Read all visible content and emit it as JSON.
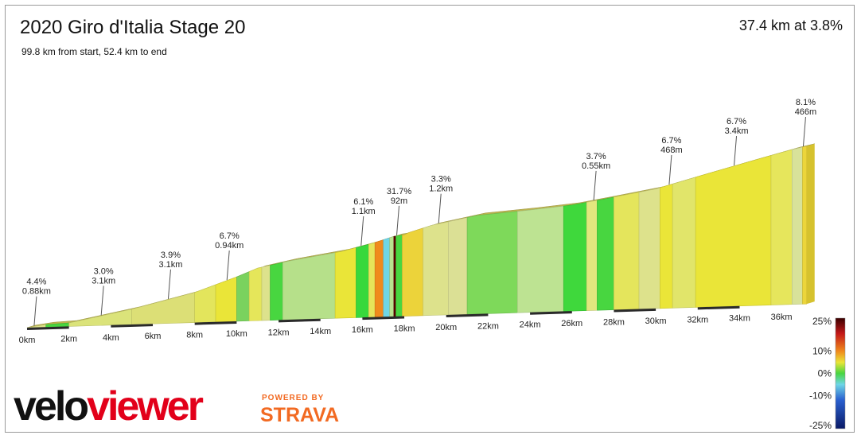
{
  "header": {
    "title": "2020 Giro d'Italia Stage 20",
    "subtitle": "99.8 km from start, 52.4 km to end",
    "summary": "37.4 km at 3.8%"
  },
  "branding": {
    "logo_part1": "velo",
    "logo_part2": "viewer",
    "powered_by": "POWERED BY",
    "strava": "STRAVA"
  },
  "chart_data": {
    "type": "area",
    "x_unit": "km",
    "x_ticks": [
      "0km",
      "2km",
      "4km",
      "6km",
      "8km",
      "10km",
      "12km",
      "14km",
      "16km",
      "18km",
      "20km",
      "22km",
      "24km",
      "26km",
      "28km",
      "30km",
      "32km",
      "34km",
      "36km"
    ],
    "x_tick_values": [
      0,
      2,
      4,
      6,
      8,
      10,
      12,
      14,
      16,
      18,
      20,
      22,
      24,
      26,
      28,
      30,
      32,
      34,
      36
    ],
    "xlim": [
      0,
      37.4
    ],
    "profile": [
      {
        "x": 0.0,
        "y": 0
      },
      {
        "x": 0.9,
        "y": 10
      },
      {
        "x": 2.0,
        "y": 14
      },
      {
        "x": 5.0,
        "y": 62
      },
      {
        "x": 8.0,
        "y": 122
      },
      {
        "x": 10.0,
        "y": 180
      },
      {
        "x": 11.0,
        "y": 213
      },
      {
        "x": 12.5,
        "y": 238
      },
      {
        "x": 15.0,
        "y": 270
      },
      {
        "x": 16.5,
        "y": 300
      },
      {
        "x": 17.5,
        "y": 325
      },
      {
        "x": 18.0,
        "y": 330
      },
      {
        "x": 18.2,
        "y": 338
      },
      {
        "x": 19.3,
        "y": 365
      },
      {
        "x": 21.5,
        "y": 400
      },
      {
        "x": 24.0,
        "y": 415
      },
      {
        "x": 26.0,
        "y": 430
      },
      {
        "x": 27.5,
        "y": 450
      },
      {
        "x": 30.0,
        "y": 485
      },
      {
        "x": 32.0,
        "y": 530
      },
      {
        "x": 34.5,
        "y": 585
      },
      {
        "x": 36.5,
        "y": 628
      },
      {
        "x": 37.2,
        "y": 640
      }
    ],
    "segments": [
      {
        "x0": 0.0,
        "x1": 0.9,
        "gradient": 4.4,
        "color": "#dfe38a"
      },
      {
        "x0": 0.9,
        "x1": 2.0,
        "gradient": 0.5,
        "color": "#48d640"
      },
      {
        "x0": 2.0,
        "x1": 5.0,
        "gradient": 3.0,
        "color": "#dbe37a"
      },
      {
        "x0": 5.0,
        "x1": 8.0,
        "gradient": 3.9,
        "color": "#dcdf76"
      },
      {
        "x0": 8.0,
        "x1": 9.0,
        "gradient": 5.5,
        "color": "#e3e55c"
      },
      {
        "x0": 9.0,
        "x1": 10.0,
        "gradient": 6.7,
        "color": "#eae538"
      },
      {
        "x0": 10.0,
        "x1": 10.6,
        "gradient": 1.0,
        "color": "#7ad25e"
      },
      {
        "x0": 10.6,
        "x1": 11.2,
        "gradient": 5.0,
        "color": "#e5e65a"
      },
      {
        "x0": 11.2,
        "x1": 11.6,
        "gradient": 3.5,
        "color": "#dde28c"
      },
      {
        "x0": 11.6,
        "x1": 12.2,
        "gradient": 0.5,
        "color": "#48d640"
      },
      {
        "x0": 12.2,
        "x1": 14.7,
        "gradient": 2.0,
        "color": "#b6e08a"
      },
      {
        "x0": 14.7,
        "x1": 15.7,
        "gradient": 6.1,
        "color": "#eae538"
      },
      {
        "x0": 15.7,
        "x1": 16.3,
        "gradient": 0.3,
        "color": "#38d83c"
      },
      {
        "x0": 16.3,
        "x1": 16.6,
        "gradient": 5.0,
        "color": "#e6e45a"
      },
      {
        "x0": 16.6,
        "x1": 17.0,
        "gradient": 12.0,
        "color": "#f08a1c"
      },
      {
        "x0": 17.0,
        "x1": 17.3,
        "gradient": -4.0,
        "color": "#6fd6e6"
      },
      {
        "x0": 17.3,
        "x1": 17.5,
        "gradient": 2.0,
        "color": "#b9e28e"
      },
      {
        "x0": 17.5,
        "x1": 17.6,
        "gradient": 31.7,
        "color": "#5a0000"
      },
      {
        "x0": 17.6,
        "x1": 17.9,
        "gradient": 1.0,
        "color": "#48d640"
      },
      {
        "x0": 17.9,
        "x1": 18.9,
        "gradient": 6.0,
        "color": "#ecd33a"
      },
      {
        "x0": 18.9,
        "x1": 20.1,
        "gradient": 3.3,
        "color": "#dde28c"
      },
      {
        "x0": 20.1,
        "x1": 21.0,
        "gradient": 3.0,
        "color": "#dbe095"
      },
      {
        "x0": 21.0,
        "x1": 23.4,
        "gradient": 1.0,
        "color": "#7ed95a"
      },
      {
        "x0": 23.4,
        "x1": 25.6,
        "gradient": 2.0,
        "color": "#bde392"
      },
      {
        "x0": 25.6,
        "x1": 26.7,
        "gradient": 0.3,
        "color": "#3fd83c"
      },
      {
        "x0": 26.7,
        "x1": 27.2,
        "gradient": 3.7,
        "color": "#e2e77e"
      },
      {
        "x0": 27.2,
        "x1": 28.0,
        "gradient": 0.5,
        "color": "#48d640"
      },
      {
        "x0": 28.0,
        "x1": 29.2,
        "gradient": 5.0,
        "color": "#e4e55c"
      },
      {
        "x0": 29.2,
        "x1": 30.2,
        "gradient": 3.5,
        "color": "#dde28c"
      },
      {
        "x0": 30.2,
        "x1": 30.8,
        "gradient": 6.7,
        "color": "#eae538"
      },
      {
        "x0": 30.8,
        "x1": 31.9,
        "gradient": 4.0,
        "color": "#e1e56a"
      },
      {
        "x0": 31.9,
        "x1": 35.5,
        "gradient": 6.7,
        "color": "#eae538"
      },
      {
        "x0": 35.5,
        "x1": 36.5,
        "gradient": 4.5,
        "color": "#e6e65c"
      },
      {
        "x0": 36.5,
        "x1": 37.0,
        "gradient": 3.0,
        "color": "#d8e29a"
      },
      {
        "x0": 37.0,
        "x1": 37.2,
        "gradient": 8.1,
        "color": "#ecd53a"
      }
    ],
    "annotations": [
      {
        "x": 0.3,
        "line1": "4.4%",
        "line2": "0.88km"
      },
      {
        "x": 3.5,
        "line1": "3.0%",
        "line2": "3.1km"
      },
      {
        "x": 6.7,
        "line1": "3.9%",
        "line2": "3.1km"
      },
      {
        "x": 9.5,
        "line1": "6.7%",
        "line2": "0.94km"
      },
      {
        "x": 15.9,
        "line1": "6.1%",
        "line2": "1.1km"
      },
      {
        "x": 17.6,
        "line1": "31.7%",
        "line2": "92m"
      },
      {
        "x": 19.6,
        "line1": "3.3%",
        "line2": "1.2km"
      },
      {
        "x": 27.0,
        "line1": "3.7%",
        "line2": "0.55km"
      },
      {
        "x": 30.6,
        "line1": "6.7%",
        "line2": "468m"
      },
      {
        "x": 33.7,
        "line1": "6.7%",
        "line2": "3.4km"
      },
      {
        "x": 37.0,
        "line1": "8.1%",
        "line2": "466m"
      }
    ],
    "legend": {
      "labels": [
        "25%",
        "10%",
        "0%",
        "-10%",
        "-25%"
      ],
      "values": [
        25,
        10,
        0,
        -10,
        -25
      ],
      "stops": [
        {
          "v": 25,
          "color": "#3a0000"
        },
        {
          "v": 18,
          "color": "#c41818"
        },
        {
          "v": 10,
          "color": "#f08a1c"
        },
        {
          "v": 5,
          "color": "#eae538"
        },
        {
          "v": 0,
          "color": "#48d640"
        },
        {
          "v": -5,
          "color": "#6fd6e6"
        },
        {
          "v": -12,
          "color": "#2a60d0"
        },
        {
          "v": -25,
          "color": "#0a1a66"
        }
      ]
    }
  }
}
